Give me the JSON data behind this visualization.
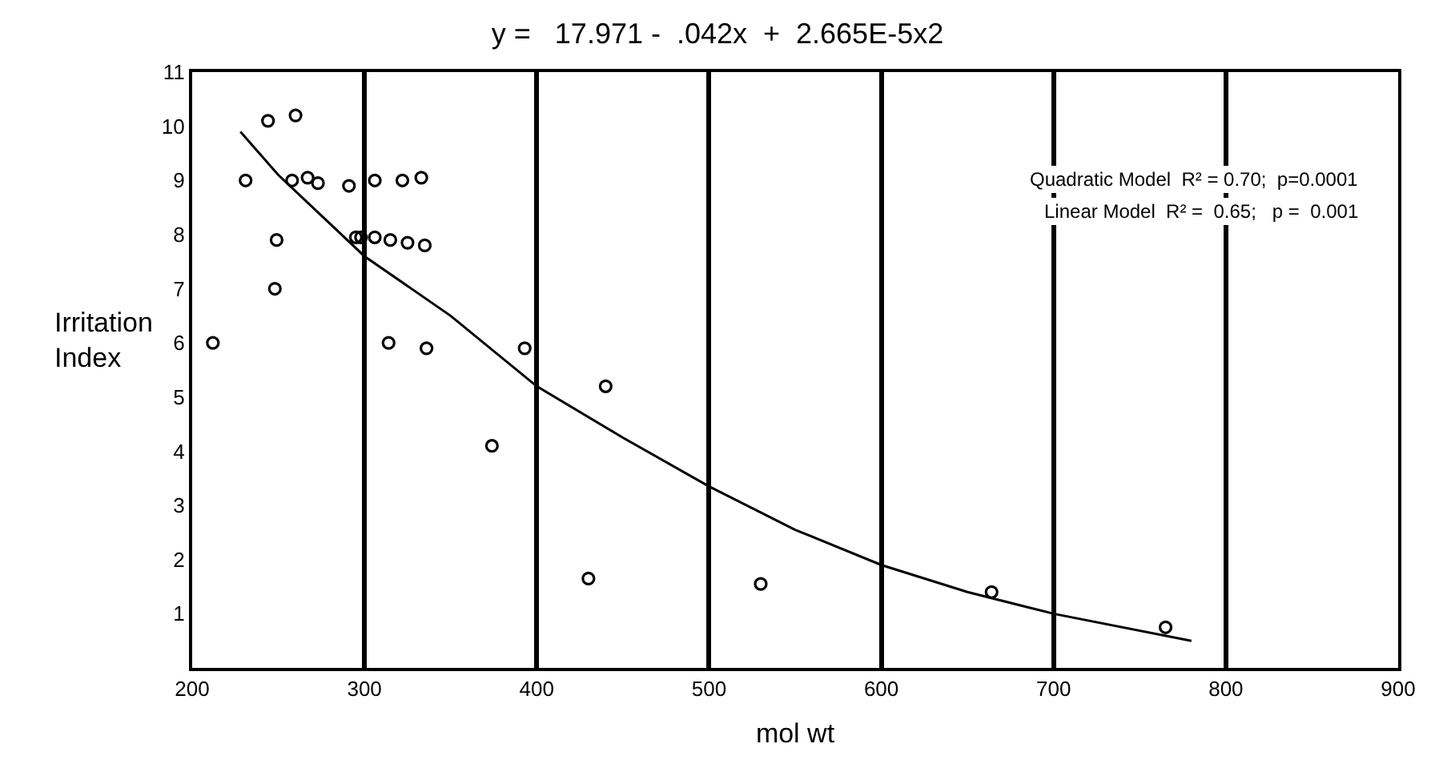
{
  "chart_data": {
    "type": "scatter",
    "title": "y =   17.971 -  .042x  +  2.665E-5x2",
    "xlabel": "mol wt",
    "ylabel": "Irritation\nIndex",
    "annotations": [
      "Quadratic Model  R² = 0.70;  p=0.0001",
      "Linear Model  R² =  0.65;   p =  0.001"
    ],
    "xlim": [
      200,
      900
    ],
    "xticks": [
      200,
      300,
      400,
      500,
      600,
      700,
      800,
      900
    ],
    "ylim": [
      0,
      11
    ],
    "yticks": [
      1,
      2,
      3,
      4,
      5,
      6,
      7,
      8,
      9,
      10,
      11
    ],
    "grid": "x",
    "series": [
      {
        "marker": "circle",
        "color": "#000000",
        "x": [
          212,
          231,
          244,
          260,
          249,
          248,
          258,
          267,
          273,
          291,
          306,
          322,
          333,
          295,
          298,
          306,
          315,
          325,
          335,
          314,
          336,
          393,
          440,
          374,
          430,
          530,
          664,
          765
        ],
        "values": [
          6.0,
          9.0,
          10.1,
          10.2,
          7.9,
          7.0,
          9.0,
          9.05,
          8.95,
          8.9,
          9.0,
          9.0,
          9.05,
          7.95,
          7.95,
          7.95,
          7.9,
          7.85,
          7.8,
          6.0,
          5.9,
          5.9,
          5.2,
          4.1,
          1.65,
          1.55,
          1.4,
          0.75
        ]
      },
      {
        "type": "line",
        "color": "#000000",
        "line_style": "solid",
        "x": [
          228,
          250,
          300,
          350,
          400,
          450,
          500,
          550,
          600,
          650,
          700,
          780
        ],
        "values": [
          9.9,
          9.1,
          7.6,
          6.5,
          5.2,
          4.25,
          3.35,
          2.55,
          1.9,
          1.4,
          1.0,
          0.5
        ]
      }
    ]
  }
}
